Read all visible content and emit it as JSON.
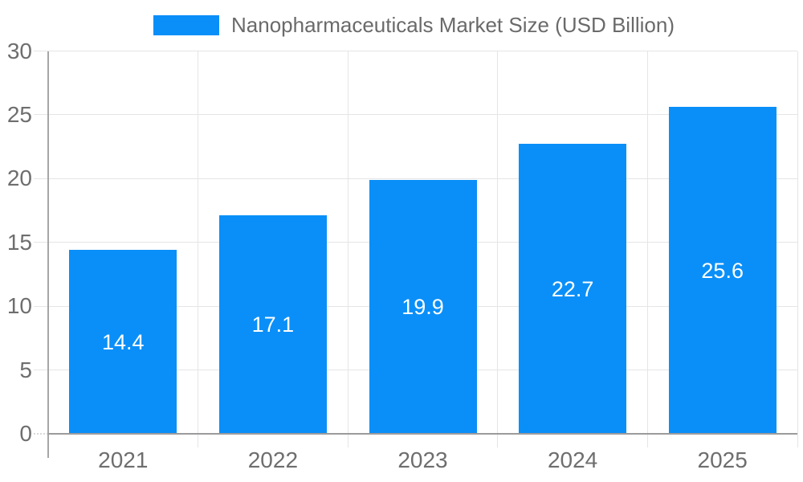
{
  "legend": {
    "label": "Nanopharmaceuticals Market Size (USD Billion)"
  },
  "chart_data": {
    "type": "bar",
    "title": "Nanopharmaceuticals Market Size (USD Billion)",
    "categories": [
      "2021",
      "2022",
      "2023",
      "2024",
      "2025"
    ],
    "series": [
      {
        "name": "Nanopharmaceuticals Market Size (USD Billion)",
        "values": [
          14.4,
          17.1,
          19.9,
          22.7,
          25.6
        ]
      }
    ],
    "values": [
      14.4,
      17.1,
      19.9,
      22.7,
      25.6
    ],
    "value_labels": [
      "14.4",
      "17.1",
      "19.9",
      "22.7",
      "25.6"
    ],
    "xlabel": "",
    "ylabel": "",
    "ylim": [
      0,
      30
    ],
    "yticks": [
      0,
      5,
      10,
      15,
      20,
      25,
      30
    ],
    "grid": true,
    "legend_position": "top-center",
    "value_label_position": "inside-middle",
    "colors": {
      "bar": "#0a8ff8",
      "grid": "#e5e5e5",
      "x_axis_line": "#9b9b9b",
      "y_axis_line": "#a6a6a6",
      "tick_text": "#6e6e6e",
      "legend_text": "#6a6a6a",
      "value_text": "#ffffff",
      "background": "#ffffff"
    }
  }
}
